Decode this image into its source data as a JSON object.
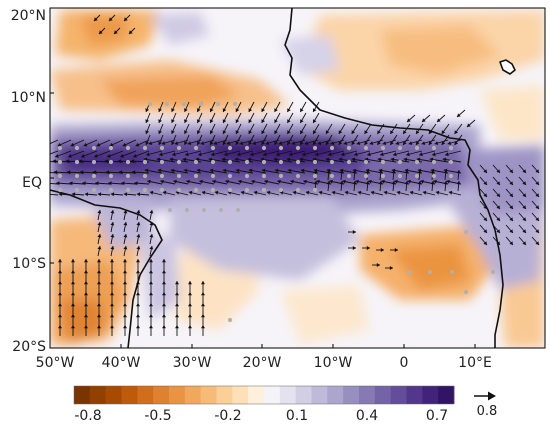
{
  "map": {
    "lat_labels": [
      "20°N",
      "10°N",
      "EQ",
      "10°S",
      "20°S"
    ],
    "lon_labels": [
      "50°W",
      "40°W",
      "30°W",
      "20°W",
      "10°W",
      "0",
      "10°E"
    ],
    "lon_range_deg": [
      -50,
      20
    ],
    "lat_range_deg": [
      -20,
      20
    ]
  },
  "colorbar": {
    "tick_labels": [
      "-0.8",
      "-0.5",
      "-0.2",
      "0.1",
      "0.4",
      "0.7"
    ],
    "negative_colors": [
      "#7a3400",
      "#914000",
      "#a84b00",
      "#be5a0a",
      "#d26d1c",
      "#e0812f",
      "#ea9443",
      "#f2a85c",
      "#f7bb78",
      "#fbcf98",
      "#fde0b8",
      "#fff0dc"
    ],
    "positive_colors": [
      "#f3f3f8",
      "#e4e2ef",
      "#d2cfe5",
      "#bfbada",
      "#aca5ce",
      "#988fc1",
      "#8679b4",
      "#7563a7",
      "#644d99",
      "#53378a",
      "#42237a",
      "#321464"
    ]
  },
  "reference_vector": {
    "label": "0.8"
  }
}
